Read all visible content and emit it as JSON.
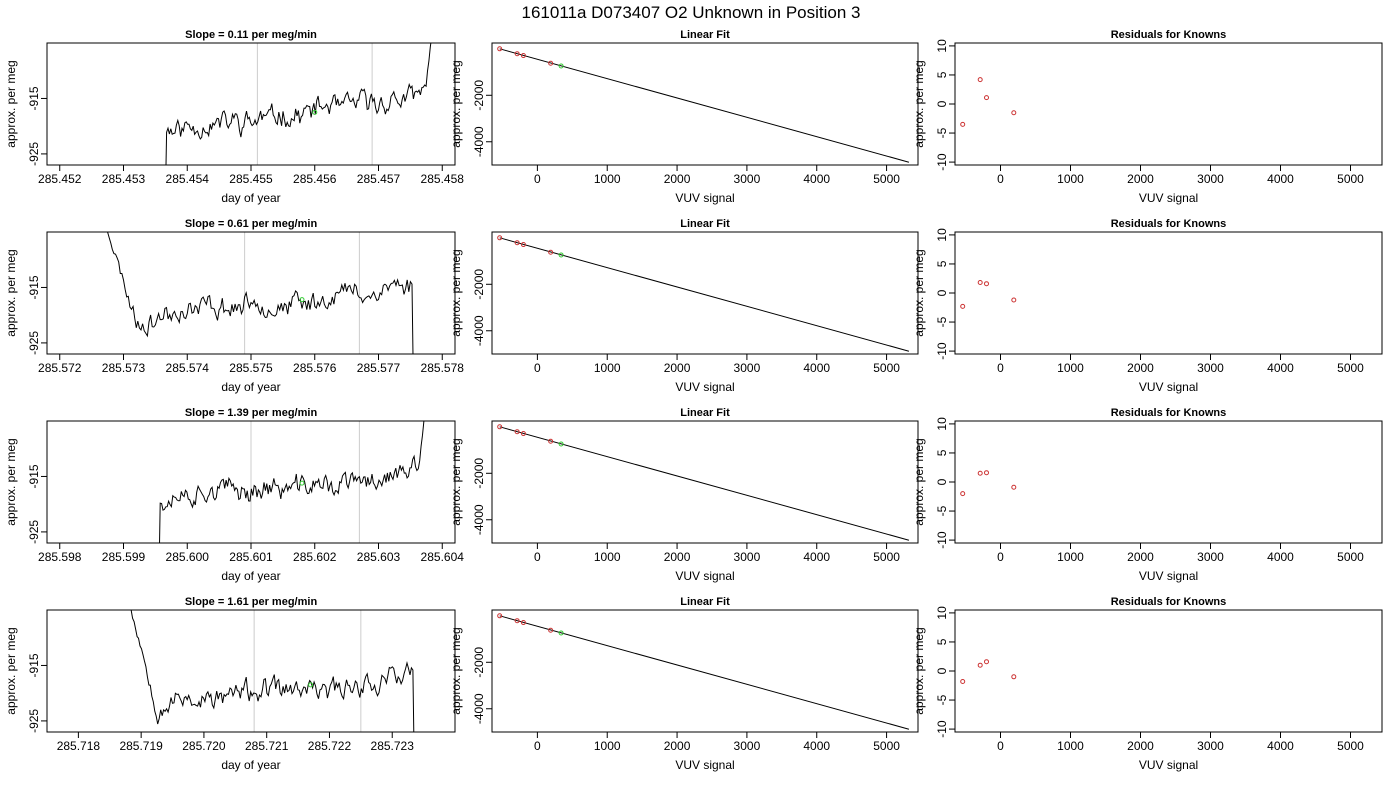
{
  "figure": {
    "title": "161011a     D073407   O2 Unknown in Position  3"
  },
  "chart_data": [
    {
      "type": "line",
      "row": 0,
      "col": 0,
      "title": "Slope =  0.11  per meg/min",
      "xlabel": "day of year",
      "ylabel": "approx. per meg",
      "xlim": [
        285.4518,
        285.4582
      ],
      "ylim": [
        -927,
        -905
      ],
      "xticks": [
        "285.452",
        "285.453",
        "285.454",
        "285.455",
        "285.456",
        "285.457",
        "285.458"
      ],
      "xtick_values": [
        285.452,
        285.453,
        285.454,
        285.455,
        285.456,
        285.457,
        285.458
      ],
      "yticks": [
        "-925",
        "-915"
      ],
      "ytick_values": [
        -925,
        -915
      ],
      "vlines": [
        285.4551,
        285.4569
      ],
      "trace": {
        "start": 285.4535,
        "end": 285.4579,
        "level_start": -920.5,
        "level_end": -914.5,
        "seed": 11,
        "head": "below",
        "tail": "above"
      },
      "unknown_point": {
        "x": 285.456,
        "y": -917.5
      }
    },
    {
      "type": "line",
      "row": 0,
      "col": 1,
      "title": "Linear Fit",
      "xlabel": "VUV signal",
      "ylabel": "approx. per meg",
      "xlim": [
        -650,
        5450
      ],
      "ylim": [
        -5000,
        250
      ],
      "xticks": [
        "0",
        "1000",
        "2000",
        "3000",
        "4000",
        "5000"
      ],
      "xtick_values": [
        0,
        1000,
        2000,
        3000,
        4000,
        5000
      ],
      "yticks": [
        "-2000",
        "-4000"
      ],
      "ytick_values": [
        -2000,
        -4000
      ],
      "fit_line": [
        {
          "x": -540,
          "y": 0
        },
        {
          "x": 5320,
          "y": -4880
        }
      ],
      "known_points": [
        {
          "x": -540,
          "y": 0
        },
        {
          "x": -290,
          "y": -210
        },
        {
          "x": -200,
          "y": -290
        },
        {
          "x": 190,
          "y": -620
        }
      ],
      "unknown_point": {
        "x": 340,
        "y": -740
      }
    },
    {
      "type": "scatter",
      "row": 0,
      "col": 2,
      "title": "Residuals for Knowns",
      "xlabel": "VUV signal",
      "ylabel": "approx. per meg",
      "xlim": [
        -650,
        5450
      ],
      "ylim": [
        -10.5,
        10.5
      ],
      "xticks": [
        "0",
        "1000",
        "2000",
        "3000",
        "4000",
        "5000"
      ],
      "xtick_values": [
        0,
        1000,
        2000,
        3000,
        4000,
        5000
      ],
      "yticks": [
        "-10",
        "-5",
        "0",
        "5",
        "10"
      ],
      "ytick_values": [
        -10,
        -5,
        0,
        5,
        10
      ],
      "points": [
        {
          "x": -540,
          "y": -3.5
        },
        {
          "x": -290,
          "y": 4.2
        },
        {
          "x": -200,
          "y": 1.1
        },
        {
          "x": 190,
          "y": -1.5
        }
      ]
    },
    {
      "type": "line",
      "row": 1,
      "col": 0,
      "title": "Slope =  0.61  per meg/min",
      "xlabel": "day of year",
      "ylabel": "approx. per meg",
      "xlim": [
        285.5718,
        285.5782
      ],
      "ylim": [
        -927,
        -905
      ],
      "xticks": [
        "285.572",
        "285.573",
        "285.574",
        "285.575",
        "285.576",
        "285.577",
        "285.578"
      ],
      "xtick_values": [
        285.572,
        285.573,
        285.574,
        285.575,
        285.576,
        285.577,
        285.578
      ],
      "yticks": [
        "-925",
        "-915"
      ],
      "ytick_values": [
        -925,
        -915
      ],
      "vlines": [
        285.5749,
        285.5767
      ],
      "trace": {
        "start": 285.5726,
        "end": 285.5776,
        "level_start": -922,
        "level_end": -914.5,
        "seed": 23,
        "head": "above-fall",
        "tail": "below"
      },
      "unknown_point": {
        "x": 285.5758,
        "y": -917.2
      }
    },
    {
      "type": "line",
      "row": 1,
      "col": 1,
      "title": "Linear Fit",
      "xlabel": "VUV signal",
      "ylabel": "approx. per meg",
      "xlim": [
        -650,
        5450
      ],
      "ylim": [
        -5000,
        250
      ],
      "xticks": [
        "0",
        "1000",
        "2000",
        "3000",
        "4000",
        "5000"
      ],
      "xtick_values": [
        0,
        1000,
        2000,
        3000,
        4000,
        5000
      ],
      "yticks": [
        "-2000",
        "-4000"
      ],
      "ytick_values": [
        -2000,
        -4000
      ],
      "fit_line": [
        {
          "x": -540,
          "y": 0
        },
        {
          "x": 5320,
          "y": -4880
        }
      ],
      "known_points": [
        {
          "x": -540,
          "y": 0
        },
        {
          "x": -290,
          "y": -210
        },
        {
          "x": -200,
          "y": -290
        },
        {
          "x": 190,
          "y": -620
        }
      ],
      "unknown_point": {
        "x": 340,
        "y": -740
      }
    },
    {
      "type": "scatter",
      "row": 1,
      "col": 2,
      "title": "Residuals for Knowns",
      "xlabel": "VUV signal",
      "ylabel": "approx. per meg",
      "xlim": [
        -650,
        5450
      ],
      "ylim": [
        -10.5,
        10.5
      ],
      "xticks": [
        "0",
        "1000",
        "2000",
        "3000",
        "4000",
        "5000"
      ],
      "xtick_values": [
        0,
        1000,
        2000,
        3000,
        4000,
        5000
      ],
      "yticks": [
        "-10",
        "-5",
        "0",
        "5",
        "10"
      ],
      "ytick_values": [
        -10,
        -5,
        0,
        5,
        10
      ],
      "points": [
        {
          "x": -540,
          "y": -2.3
        },
        {
          "x": -290,
          "y": 1.8
        },
        {
          "x": -200,
          "y": 1.6
        },
        {
          "x": 190,
          "y": -1.2
        }
      ]
    },
    {
      "type": "line",
      "row": 2,
      "col": 0,
      "title": "Slope =  1.39  per meg/min",
      "xlabel": "day of year",
      "ylabel": "approx. per meg",
      "xlim": [
        285.5978,
        285.6042
      ],
      "ylim": [
        -927,
        -905
      ],
      "xticks": [
        "285.598",
        "285.599",
        "285.600",
        "285.601",
        "285.602",
        "285.603",
        "285.604"
      ],
      "xtick_values": [
        285.598,
        285.599,
        285.6,
        285.601,
        285.602,
        285.603,
        285.604
      ],
      "yticks": [
        "-925",
        "-915"
      ],
      "ytick_values": [
        -925,
        -915
      ],
      "vlines": [
        285.601,
        285.6027
      ],
      "trace": {
        "start": 285.5994,
        "end": 285.6038,
        "level_start": -919.5,
        "level_end": -914.5,
        "seed": 37,
        "head": "below",
        "tail": "above"
      },
      "unknown_point": {
        "x": 285.6018,
        "y": -916.2
      }
    },
    {
      "type": "line",
      "row": 2,
      "col": 1,
      "title": "Linear Fit",
      "xlabel": "VUV signal",
      "ylabel": "approx. per meg",
      "xlim": [
        -650,
        5450
      ],
      "ylim": [
        -5000,
        250
      ],
      "xticks": [
        "0",
        "1000",
        "2000",
        "3000",
        "4000",
        "5000"
      ],
      "xtick_values": [
        0,
        1000,
        2000,
        3000,
        4000,
        5000
      ],
      "yticks": [
        "-2000",
        "-4000"
      ],
      "ytick_values": [
        -2000,
        -4000
      ],
      "fit_line": [
        {
          "x": -540,
          "y": 0
        },
        {
          "x": 5320,
          "y": -4880
        }
      ],
      "known_points": [
        {
          "x": -540,
          "y": 0
        },
        {
          "x": -290,
          "y": -210
        },
        {
          "x": -200,
          "y": -290
        },
        {
          "x": 190,
          "y": -620
        }
      ],
      "unknown_point": {
        "x": 340,
        "y": -740
      }
    },
    {
      "type": "scatter",
      "row": 2,
      "col": 2,
      "title": "Residuals for Knowns",
      "xlabel": "VUV signal",
      "ylabel": "approx. per meg",
      "xlim": [
        -650,
        5450
      ],
      "ylim": [
        -10.5,
        10.5
      ],
      "xticks": [
        "0",
        "1000",
        "2000",
        "3000",
        "4000",
        "5000"
      ],
      "xtick_values": [
        0,
        1000,
        2000,
        3000,
        4000,
        5000
      ],
      "yticks": [
        "-10",
        "-5",
        "0",
        "5",
        "10"
      ],
      "ytick_values": [
        -10,
        -5,
        0,
        5,
        10
      ],
      "points": [
        {
          "x": -540,
          "y": -2.0
        },
        {
          "x": -290,
          "y": 1.5
        },
        {
          "x": -200,
          "y": 1.6
        },
        {
          "x": 190,
          "y": -0.9
        }
      ]
    },
    {
      "type": "line",
      "row": 3,
      "col": 0,
      "title": "Slope =  1.61  per meg/min",
      "xlabel": "day of year",
      "ylabel": "approx. per meg",
      "xlim": [
        285.7175,
        285.724
      ],
      "ylim": [
        -927,
        -905
      ],
      "xticks": [
        "285.718",
        "285.719",
        "285.720",
        "285.721",
        "285.722",
        "285.723"
      ],
      "xtick_values": [
        285.718,
        285.719,
        285.72,
        285.721,
        285.722,
        285.723
      ],
      "yticks": [
        "-925",
        "-915"
      ],
      "ytick_values": [
        -925,
        -915
      ],
      "vlines": [
        285.7208,
        285.7225
      ],
      "trace": {
        "start": 285.7187,
        "end": 285.7234,
        "level_start": -922.5,
        "level_end": -917,
        "seed": 53,
        "head": "above-fall",
        "tail": "below"
      },
      "unknown_point": {
        "x": 285.7217,
        "y": -918.5
      }
    },
    {
      "type": "line",
      "row": 3,
      "col": 1,
      "title": "Linear Fit",
      "xlabel": "VUV signal",
      "ylabel": "approx. per meg",
      "xlim": [
        -650,
        5450
      ],
      "ylim": [
        -5000,
        250
      ],
      "xticks": [
        "0",
        "1000",
        "2000",
        "3000",
        "4000",
        "5000"
      ],
      "xtick_values": [
        0,
        1000,
        2000,
        3000,
        4000,
        5000
      ],
      "yticks": [
        "-2000",
        "-4000"
      ],
      "ytick_values": [
        -2000,
        -4000
      ],
      "fit_line": [
        {
          "x": -540,
          "y": 0
        },
        {
          "x": 5320,
          "y": -4880
        }
      ],
      "known_points": [
        {
          "x": -540,
          "y": 0
        },
        {
          "x": -290,
          "y": -210
        },
        {
          "x": -200,
          "y": -290
        },
        {
          "x": 190,
          "y": -620
        }
      ],
      "unknown_point": {
        "x": 340,
        "y": -740
      }
    },
    {
      "type": "scatter",
      "row": 3,
      "col": 2,
      "title": "Residuals for Knowns",
      "xlabel": "VUV signal",
      "ylabel": "approx. per meg",
      "xlim": [
        -650,
        5450
      ],
      "ylim": [
        -10.5,
        10.5
      ],
      "xticks": [
        "0",
        "1000",
        "2000",
        "3000",
        "4000",
        "5000"
      ],
      "xtick_values": [
        0,
        1000,
        2000,
        3000,
        4000,
        5000
      ],
      "yticks": [
        "-10",
        "-5",
        "0",
        "5",
        "10"
      ],
      "ytick_values": [
        -10,
        -5,
        0,
        5,
        10
      ],
      "points": [
        {
          "x": -540,
          "y": -1.8
        },
        {
          "x": -290,
          "y": 1.0
        },
        {
          "x": -200,
          "y": 1.6
        },
        {
          "x": 190,
          "y": -1.0
        }
      ]
    }
  ],
  "colors": {
    "trace": "#000000",
    "fit_line": "#000000",
    "known_point": "#cc3333",
    "unknown_point": "#33cc33",
    "vline": "#cccccc",
    "axis": "#000000"
  }
}
